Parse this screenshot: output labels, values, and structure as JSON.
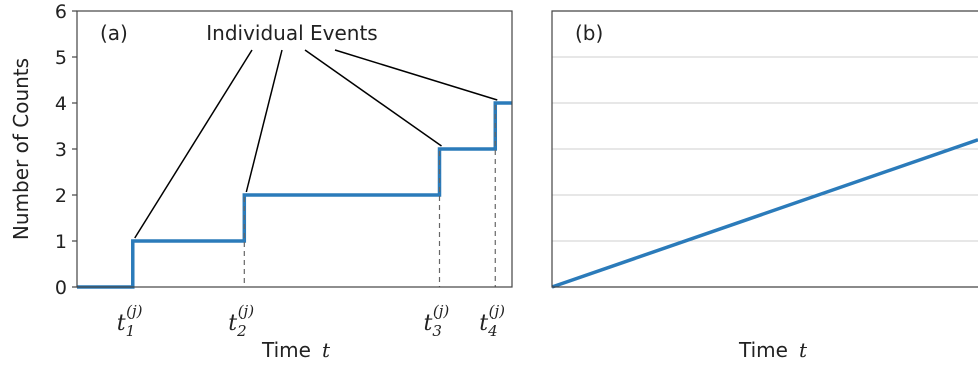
{
  "colors": {
    "series": "#2b7bba",
    "axis": "#444444",
    "grid": "#cfcfcf",
    "annotation": "#000000",
    "dashed": "#666666"
  },
  "chart_data": [
    {
      "type": "line",
      "panel_label": "(a)",
      "xlabel": "Time",
      "xlabel_var": "t",
      "ylabel": "Number of Counts",
      "ylim": [
        0,
        6
      ],
      "yticks": [
        "0",
        "1",
        "2",
        "3",
        "4",
        "5",
        "6"
      ],
      "grid": false,
      "annotation": "Individual Events",
      "event_times": [
        {
          "base": "t",
          "sub": "1",
          "sup": "(j)",
          "x": 0.1
        },
        {
          "base": "t",
          "sub": "2",
          "sup": "(j)",
          "x": 0.3
        },
        {
          "base": "t",
          "sub": "3",
          "sup": "(j)",
          "x": 0.65
        },
        {
          "base": "t",
          "sub": "4",
          "sup": "(j)",
          "x": 0.75
        }
      ],
      "xlim": [
        0,
        0.78
      ],
      "series": [
        {
          "x": [
            0,
            0.1,
            0.1,
            0.3,
            0.3,
            0.65,
            0.65,
            0.75,
            0.75,
            0.78
          ],
          "y": [
            0,
            0,
            1,
            1,
            2,
            2,
            3,
            3,
            4,
            4
          ]
        }
      ]
    },
    {
      "type": "line",
      "panel_label": "(b)",
      "xlabel": "Time",
      "xlabel_var": "t",
      "ylim": [
        0,
        6
      ],
      "grid": true,
      "xlim": [
        0,
        1
      ],
      "series": [
        {
          "x": [
            0,
            1
          ],
          "y": [
            0,
            3.2
          ]
        }
      ]
    }
  ]
}
